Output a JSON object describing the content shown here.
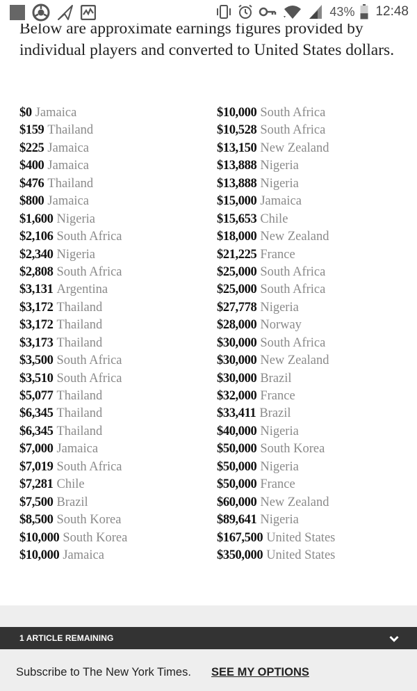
{
  "status_bar": {
    "left_icons": [
      "square-app-icon",
      "chrome-icon",
      "plane-notification-icon",
      "pulse-chart-icon"
    ],
    "right_icons": [
      "vibrate-icon",
      "alarm-clock-icon",
      "key-icon",
      "wifi-icon",
      "cell-signal-icon"
    ],
    "battery_percent": "43%",
    "battery_level": 0.43,
    "time": "12:48"
  },
  "article": {
    "intro": "Below are approximate earnings figures provided by individual players and converted to United States dollars.",
    "left_column": [
      {
        "amount": "$0",
        "country": "Jamaica"
      },
      {
        "amount": "$159",
        "country": "Thailand"
      },
      {
        "amount": "$225",
        "country": "Jamaica"
      },
      {
        "amount": "$400",
        "country": "Jamaica"
      },
      {
        "amount": "$476",
        "country": "Thailand"
      },
      {
        "amount": "$800",
        "country": "Jamaica"
      },
      {
        "amount": "$1,600",
        "country": "Nigeria"
      },
      {
        "amount": "$2,106",
        "country": "South Africa"
      },
      {
        "amount": "$2,340",
        "country": "Nigeria"
      },
      {
        "amount": "$2,808",
        "country": "South Africa"
      },
      {
        "amount": "$3,131",
        "country": "Argentina"
      },
      {
        "amount": "$3,172",
        "country": "Thailand"
      },
      {
        "amount": "$3,172",
        "country": "Thailand"
      },
      {
        "amount": "$3,173",
        "country": "Thailand"
      },
      {
        "amount": "$3,500",
        "country": "South Africa"
      },
      {
        "amount": "$3,510",
        "country": "South Africa"
      },
      {
        "amount": "$5,077",
        "country": "Thailand"
      },
      {
        "amount": "$6,345",
        "country": "Thailand"
      },
      {
        "amount": "$6,345",
        "country": "Thailand"
      },
      {
        "amount": "$7,000",
        "country": "Jamaica"
      },
      {
        "amount": "$7,019",
        "country": "South Africa"
      },
      {
        "amount": "$7,281",
        "country": "Chile"
      },
      {
        "amount": "$7,500",
        "country": "Brazil"
      },
      {
        "amount": "$8,500",
        "country": "South Korea"
      },
      {
        "amount": "$10,000",
        "country": "South Korea"
      },
      {
        "amount": "$10,000",
        "country": "Jamaica"
      }
    ],
    "right_column": [
      {
        "amount": "$10,000",
        "country": "South Africa"
      },
      {
        "amount": "$10,528",
        "country": "South Africa"
      },
      {
        "amount": "$13,150",
        "country": "New Zealand"
      },
      {
        "amount": "$13,888",
        "country": "Nigeria"
      },
      {
        "amount": "$13,888",
        "country": "Nigeria"
      },
      {
        "amount": "$15,000",
        "country": "Jamaica"
      },
      {
        "amount": "$15,653",
        "country": "Chile"
      },
      {
        "amount": "$18,000",
        "country": "New Zealand"
      },
      {
        "amount": "$21,225",
        "country": "France"
      },
      {
        "amount": "$25,000",
        "country": "South Africa"
      },
      {
        "amount": "$25,000",
        "country": "South Africa"
      },
      {
        "amount": "$27,778",
        "country": "Nigeria"
      },
      {
        "amount": "$28,000",
        "country": "Norway"
      },
      {
        "amount": "$30,000",
        "country": "South Africa"
      },
      {
        "amount": "$30,000",
        "country": "New Zealand"
      },
      {
        "amount": "$30,000",
        "country": "Brazil"
      },
      {
        "amount": "$32,000",
        "country": "France"
      },
      {
        "amount": "$33,411",
        "country": "Brazil"
      },
      {
        "amount": "$40,000",
        "country": "Nigeria"
      },
      {
        "amount": "$50,000",
        "country": "South Korea"
      },
      {
        "amount": "$50,000",
        "country": "Nigeria"
      },
      {
        "amount": "$50,000",
        "country": "France"
      },
      {
        "amount": "$60,000",
        "country": "New Zealand"
      },
      {
        "amount": "$89,641",
        "country": "Nigeria"
      },
      {
        "amount": "$167,500",
        "country": "United States"
      },
      {
        "amount": "$350,000",
        "country": "United States"
      }
    ]
  },
  "meter": {
    "label": "1 ARTICLE REMAINING",
    "toggle_icon": "chevron-down-icon"
  },
  "subscribe": {
    "text": "Subscribe to The New York Times.",
    "link": "SEE MY OPTIONS"
  },
  "colors": {
    "amount": "#111111",
    "country": "#8a8a8a",
    "meter_bar": "#333333",
    "footer_bg": "#eeeeee"
  }
}
